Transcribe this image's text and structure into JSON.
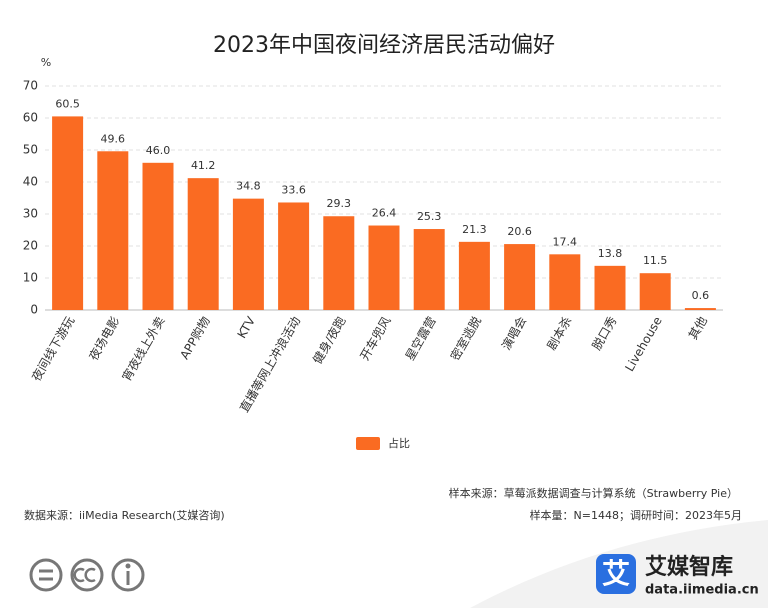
{
  "chart_data": {
    "type": "bar",
    "title": "2023年中国夜间经济居民活动偏好",
    "y_label": "%",
    "categories": [
      "夜间线下游玩",
      "夜场电影",
      "宵夜线上外卖",
      "APP购物",
      "KTV",
      "直播等网上冲浪活动",
      "健身/夜跑",
      "开车兜风",
      "星空露营",
      "密室逃脱",
      "演唱会",
      "剧本杀",
      "脱口秀",
      "Livehouse",
      "其他"
    ],
    "series": [
      {
        "name": "占比",
        "color": "#fa6b22",
        "values": [
          60.5,
          49.6,
          46.0,
          41.2,
          34.8,
          33.6,
          29.3,
          26.4,
          25.3,
          21.3,
          20.6,
          17.4,
          13.8,
          11.5,
          0.6
        ],
        "value_labels": [
          "60.5",
          "49.6",
          "46.0",
          "41.2",
          "34.8",
          "33.6",
          "29.3",
          "26.4",
          "25.3",
          "21.3",
          "20.6",
          "17.4",
          "13.8",
          "11.5",
          "0.6"
        ]
      }
    ],
    "ylim": [
      0,
      70
    ],
    "yticks": [
      0,
      10,
      20,
      30,
      40,
      50,
      60,
      70
    ],
    "grid": true,
    "sample_source": "样本来源：草莓派数据调查与计算系统（Strawberry Pie）",
    "sample_info": "样本量：N=1448；调研时间：2023年5月",
    "data_source": "数据来源：iiMedia Research(艾媒咨询)"
  },
  "brand": {
    "mark": "艾",
    "name": "艾媒智库",
    "url": "data.iimedia.cn"
  }
}
